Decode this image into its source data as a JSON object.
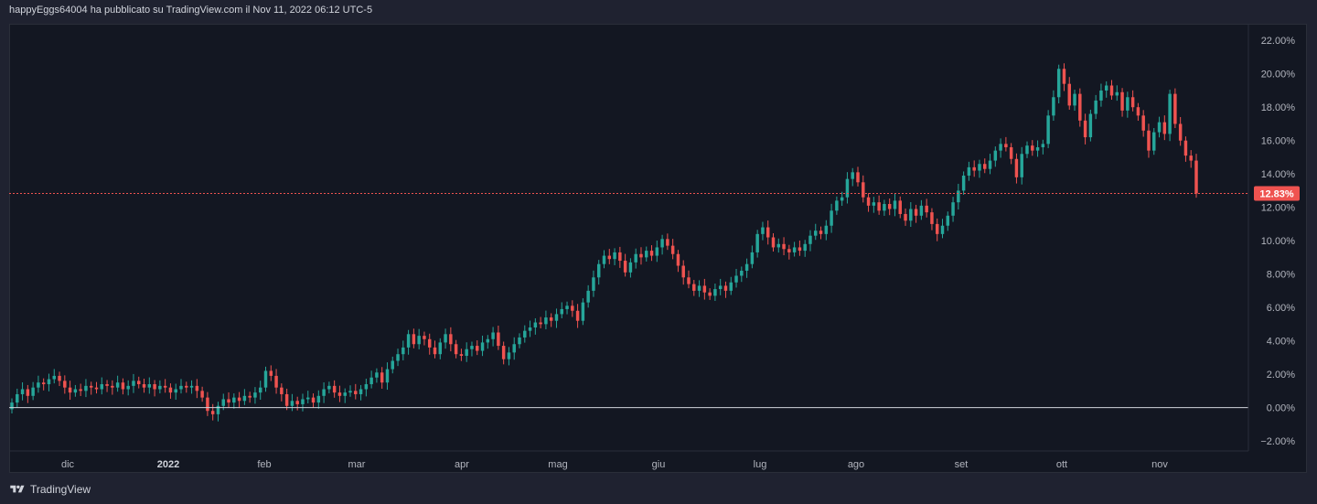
{
  "header": {
    "published_by": "happyEggs64004 ha pubblicato su TradingView.com il Nov 11, 2022 06:12 UTC-5"
  },
  "footer": {
    "brand": "TradingView",
    "logo_icon": "tradingview-logo-icon"
  },
  "colors": {
    "up": "#26a69a",
    "down": "#ef5350",
    "background": "#131722",
    "zero_line": "#d1d4dc",
    "last_price_line": "#ef5350"
  },
  "chart_data": {
    "type": "candlestick",
    "title": "",
    "y_unit": "%",
    "ylim": [
      -2.6,
      23.0
    ],
    "y_ticks": [
      "22.00%",
      "20.00%",
      "18.00%",
      "16.00%",
      "14.00%",
      "12.00%",
      "10.00%",
      "8.00%",
      "6.00%",
      "4.00%",
      "2.00%",
      "0.00%",
      "−2.00%"
    ],
    "y_tick_values": [
      22,
      20,
      18,
      16,
      14,
      12,
      10,
      8,
      6,
      4,
      2,
      0,
      -2
    ],
    "x_labels": [
      "dic",
      "2022",
      "feb",
      "mar",
      "apr",
      "mag",
      "giu",
      "lug",
      "ago",
      "set",
      "ott",
      "nov"
    ],
    "x_label_year_index": 1,
    "zero_line": 0,
    "last_value": 12.83,
    "last_value_label": "12.83%",
    "grid": false,
    "closes": [
      0.3,
      0.8,
      1.1,
      0.7,
      1.2,
      1.5,
      1.4,
      1.7,
      1.9,
      1.6,
      1.2,
      0.9,
      1.1,
      1.0,
      1.3,
      1.2,
      1.1,
      1.4,
      1.3,
      1.2,
      1.5,
      1.1,
      1.3,
      1.6,
      1.4,
      1.2,
      1.4,
      1.1,
      1.3,
      1.2,
      0.9,
      1.1,
      1.3,
      1.2,
      1.3,
      1.0,
      0.6,
      -0.2,
      -0.4,
      0.1,
      0.5,
      0.3,
      0.6,
      0.4,
      0.7,
      0.6,
      0.9,
      1.2,
      2.2,
      1.9,
      1.2,
      0.8,
      0.1,
      0.4,
      0.2,
      0.5,
      0.6,
      0.3,
      0.7,
      1.1,
      1.3,
      0.9,
      0.7,
      0.9,
      1.0,
      0.8,
      1.1,
      1.4,
      1.8,
      2.1,
      1.5,
      2.3,
      2.8,
      3.2,
      3.6,
      4.4,
      3.8,
      4.3,
      4.1,
      3.6,
      3.2,
      3.9,
      4.4,
      3.8,
      3.2,
      3.1,
      3.5,
      3.7,
      3.4,
      3.9,
      4.1,
      4.5,
      3.7,
      2.9,
      3.3,
      3.8,
      4.2,
      4.6,
      4.8,
      5.1,
      5.0,
      5.4,
      5.2,
      5.6,
      5.9,
      6.1,
      5.8,
      5.2,
      6.3,
      7.0,
      7.8,
      8.6,
      9.1,
      8.9,
      9.3,
      8.8,
      8.1,
      8.7,
      9.2,
      9.0,
      9.4,
      9.1,
      9.6,
      10.1,
      9.7,
      9.2,
      8.5,
      7.8,
      7.4,
      7.0,
      7.3,
      6.9,
      6.7,
      7.1,
      7.3,
      7.0,
      7.5,
      7.9,
      8.2,
      8.6,
      9.3,
      10.4,
      10.8,
      10.2,
      9.6,
      9.8,
      9.5,
      9.3,
      9.6,
      9.4,
      9.8,
      10.3,
      10.6,
      10.4,
      10.9,
      11.8,
      12.4,
      12.6,
      13.7,
      14.1,
      13.5,
      12.6,
      12.1,
      12.3,
      11.8,
      12.2,
      11.9,
      12.4,
      11.6,
      11.2,
      11.9,
      11.5,
      12.1,
      11.7,
      11.0,
      10.4,
      10.9,
      11.5,
      12.3,
      13.0,
      13.9,
      14.4,
      14.2,
      14.6,
      14.3,
      14.8,
      15.4,
      15.8,
      15.6,
      14.9,
      13.8,
      15.2,
      15.7,
      15.4,
      15.6,
      15.8,
      17.5,
      18.6,
      20.3,
      19.4,
      18.1,
      18.8,
      17.2,
      16.2,
      17.6,
      18.4,
      19.0,
      19.3,
      18.7,
      18.9,
      17.8,
      18.6,
      18.0,
      17.5,
      16.6,
      15.4,
      16.5,
      17.1,
      16.4,
      18.8,
      17.0,
      16.0,
      15.1,
      14.8,
      12.83
    ]
  }
}
